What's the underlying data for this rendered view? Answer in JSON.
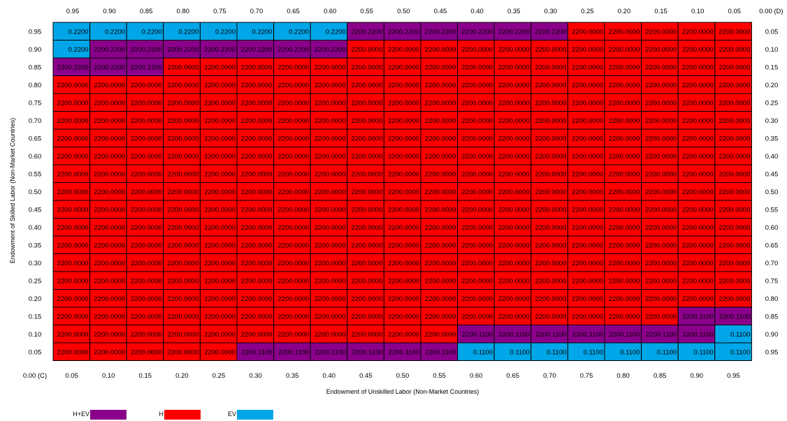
{
  "chart_data": {
    "type": "heatmap",
    "xlabel": "Endowment of Unskilled Labor (Non-Market Countries)",
    "ylabel": "Endowment of Skilled Labor (Non-Market Countries)",
    "x_top_ticks": [
      "0.95",
      "0.90",
      "0.85",
      "0.80",
      "0.75",
      "0.70",
      "0.65",
      "0.60",
      "0.55",
      "0.50",
      "0.45",
      "0.40",
      "0.35",
      "0.30",
      "0.25",
      "0.20",
      "0.15",
      "0.10",
      "0.05",
      "0.00 (D)"
    ],
    "x_bottom_ticks": [
      "0.00 (C)",
      "0.05",
      "0.10",
      "0.15",
      "0.20",
      "0.25",
      "0.30",
      "0.35",
      "0.40",
      "0.45",
      "0.50",
      "0.55",
      "0.60",
      "0.65",
      "0.70",
      "0.75",
      "0.80",
      "0.85",
      "0.90",
      "0.95"
    ],
    "y_left_ticks": [
      "0.95",
      "0.90",
      "0.85",
      "0.80",
      "0.75",
      "0.70",
      "0.65",
      "0.60",
      "0.55",
      "0.50",
      "0.45",
      "0.40",
      "0.35",
      "0.30",
      "0.25",
      "0.20",
      "0.15",
      "0.10",
      "0.05"
    ],
    "y_right_ticks": [
      "0.05",
      "0.10",
      "0.15",
      "0.20",
      "0.25",
      "0.30",
      "0.35",
      "0.40",
      "0.45",
      "0.50",
      "0.55",
      "0.60",
      "0.65",
      "0.70",
      "0.75",
      "0.80",
      "0.85",
      "0.90",
      "0.95"
    ],
    "categories": {
      "A": {
        "label": "0.2200",
        "color": "#00a6e8"
      },
      "B": {
        "label": "2200.2200",
        "color": "#8b008b"
      },
      "C": {
        "label": "2200.0000",
        "color": "#ff0000"
      },
      "D": {
        "label": "2200.1100",
        "color": "#8b008b"
      },
      "E": {
        "label": "0.1100",
        "color": "#00a6e8"
      }
    },
    "rows": [
      "AAAAAAAABBBBBBCCCCC",
      "ABBBBBBBCCCCCCCCCCC",
      "BBBCCCCCCCCCCCCCCCC",
      "CCCCCCCCCCCCCCCCCCC",
      "CCCCCCCCCCCCCCCCCCC",
      "CCCCCCCCCCCCCCCCCCC",
      "CCCCCCCCCCCCCCCCCCC",
      "CCCCCCCCCCCCCCCCCCC",
      "CCCCCCCCCCCCCCCCCCC",
      "CCCCCCCCCCCCCCCCCCC",
      "CCCCCCCCCCCCCCCCCCC",
      "CCCCCCCCCCCCCCCCCCC",
      "CCCCCCCCCCCCCCCCCCC",
      "CCCCCCCCCCCCCCCCCCC",
      "CCCCCCCCCCCCCCCCCCC",
      "CCCCCCCCCCCCCCCCCCC",
      "CCCCCCCCCCCCCCCCCDD",
      "CCCCCCCCCCCDDDDDDDE",
      "CCCCCDDDDDDEEEEEEEE"
    ],
    "legend": [
      {
        "label": "H+EV",
        "color": "#8b008b"
      },
      {
        "label": "H",
        "color": "#ff0000"
      },
      {
        "label": "EV",
        "color": "#00a6e8"
      }
    ],
    "legend_position": "bottom-left"
  }
}
